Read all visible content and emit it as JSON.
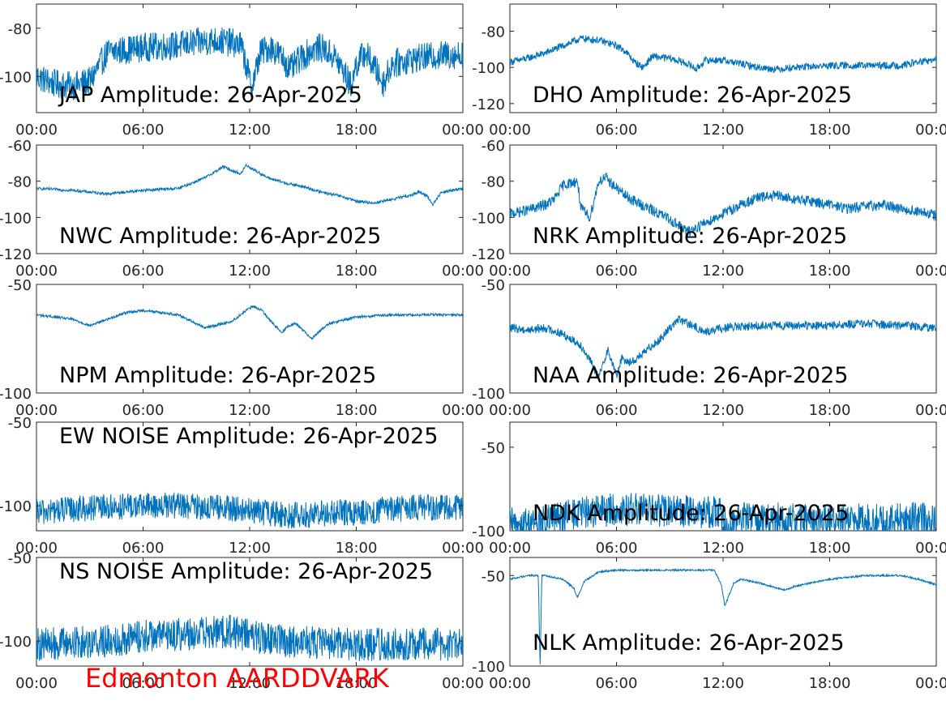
{
  "station": "Edmonton AARDDVARK",
  "colors": {
    "trace": "#0072BD",
    "station_label": "#ff0000",
    "axis": "#262626"
  },
  "chart_data": [
    {
      "type": "line",
      "title": "JAP Amplitude: 26-Apr-2025",
      "xlim": [
        0,
        24
      ],
      "xticks": [
        0,
        6,
        12,
        18,
        24
      ],
      "xtick_labels": [
        "00:00",
        "06:00",
        "12:00",
        "18:00",
        "00:00"
      ],
      "ylim": [
        -115,
        -70
      ],
      "yticks": [
        -100,
        -80
      ],
      "ytick_labels": [
        "-100",
        "-80"
      ],
      "noise": 6,
      "series": [
        {
          "x": [
            0,
            1,
            2,
            3,
            4,
            5,
            6,
            8,
            9,
            10,
            11,
            11.5,
            11.8,
            12.1,
            12.6,
            13.2,
            13.8,
            14.3,
            14.8,
            15.5,
            16,
            16.8,
            17.3,
            17.7,
            18,
            18.5,
            19.1,
            19.5,
            20,
            21,
            22,
            23,
            24
          ],
          "y": [
            -100,
            -103,
            -104,
            -102,
            -90,
            -89,
            -88,
            -87,
            -86,
            -85,
            -86,
            -87,
            -95,
            -105,
            -90,
            -88,
            -92,
            -97,
            -93,
            -89,
            -88,
            -92,
            -98,
            -104,
            -95,
            -90,
            -97,
            -103,
            -95,
            -93,
            -92,
            -91,
            -91
          ]
        }
      ]
    },
    {
      "type": "line",
      "title": "DHO Amplitude: 26-Apr-2025",
      "xlim": [
        0,
        24
      ],
      "xticks": [
        0,
        6,
        12,
        18,
        24
      ],
      "xtick_labels": [
        "00:00",
        "06:00",
        "12:00",
        "18:00",
        "00:00"
      ],
      "ylim": [
        -125,
        -65
      ],
      "yticks": [
        -120,
        -100,
        -80
      ],
      "ytick_labels": [
        "-120",
        "-100",
        "-80"
      ],
      "noise": 2,
      "series": [
        {
          "x": [
            0,
            1,
            2,
            3,
            3.5,
            4,
            5,
            6,
            6.5,
            7,
            7.5,
            8,
            9,
            10,
            10.5,
            11,
            12,
            13,
            14,
            15,
            16,
            18,
            20,
            22,
            23,
            24
          ],
          "y": [
            -97,
            -95,
            -92,
            -88,
            -86,
            -84,
            -85,
            -88,
            -91,
            -97,
            -100,
            -94,
            -95,
            -98,
            -101,
            -96,
            -96,
            -98,
            -100,
            -101,
            -100,
            -99,
            -99,
            -99,
            -97,
            -96
          ]
        }
      ]
    },
    {
      "type": "line",
      "title": "NWC Amplitude: 26-Apr-2025",
      "xlim": [
        0,
        24
      ],
      "xticks": [
        0,
        6,
        12,
        18,
        24
      ],
      "xtick_labels": [
        "00:00",
        "06:00",
        "12:00",
        "18:00",
        "00:00"
      ],
      "ylim": [
        -120,
        -60
      ],
      "yticks": [
        -120,
        -100,
        -80,
        -60
      ],
      "ytick_labels": [
        "-120",
        "-100",
        "-80",
        "-60"
      ],
      "noise": 0.8,
      "series": [
        {
          "x": [
            0,
            2,
            4,
            6,
            8,
            9.5,
            10.5,
            11.5,
            11.8,
            12.3,
            13,
            14,
            15,
            16,
            17,
            18,
            19,
            20,
            21,
            21.5,
            22,
            22.3,
            22.8,
            24
          ],
          "y": [
            -84,
            -85,
            -87,
            -85,
            -84,
            -78,
            -72,
            -76,
            -71,
            -74,
            -78,
            -81,
            -83,
            -86,
            -88,
            -91,
            -92,
            -90,
            -88,
            -86,
            -88,
            -93,
            -86,
            -84
          ]
        }
      ]
    },
    {
      "type": "line",
      "title": "NRK Amplitude: 26-Apr-2025",
      "xlim": [
        0,
        24
      ],
      "xticks": [
        0,
        6,
        12,
        18,
        24
      ],
      "xtick_labels": [
        "00:00",
        "06:00",
        "12:00",
        "18:00",
        "00:00"
      ],
      "ylim": [
        -120,
        -60
      ],
      "yticks": [
        -120,
        -100,
        -80,
        -60
      ],
      "ytick_labels": [
        "-120",
        "-100",
        "-80",
        "-60"
      ],
      "noise": 3,
      "series": [
        {
          "x": [
            0,
            1,
            2,
            2.5,
            3,
            3.8,
            4,
            4.5,
            5,
            5.4,
            5.8,
            6.5,
            7,
            8,
            9,
            10,
            11,
            12,
            13,
            14,
            15,
            16,
            17,
            18,
            19,
            20,
            21,
            22,
            23,
            24
          ],
          "y": [
            -98,
            -96,
            -93,
            -90,
            -82,
            -80,
            -95,
            -100,
            -80,
            -78,
            -82,
            -88,
            -91,
            -96,
            -101,
            -108,
            -103,
            -98,
            -93,
            -89,
            -88,
            -90,
            -91,
            -93,
            -95,
            -94,
            -93,
            -95,
            -97,
            -99
          ]
        }
      ]
    },
    {
      "type": "line",
      "title": "NPM Amplitude: 26-Apr-2025",
      "xlim": [
        0,
        24
      ],
      "xticks": [
        0,
        6,
        12,
        18,
        24
      ],
      "xtick_labels": [
        "00:00",
        "06:00",
        "12:00",
        "18:00",
        "00:00"
      ],
      "ylim": [
        -100,
        -50
      ],
      "yticks": [
        -100,
        -50
      ],
      "ytick_labels": [
        "-100",
        "-50"
      ],
      "noise": 0.6,
      "series": [
        {
          "x": [
            0,
            2,
            3,
            4,
            5,
            6,
            8,
            9,
            9.5,
            10,
            11,
            11.8,
            12.2,
            12.7,
            13.3,
            13.8,
            14.2,
            14.6,
            15,
            15.5,
            16,
            16.5,
            18,
            20,
            22,
            24
          ],
          "y": [
            -64,
            -66,
            -69,
            -66,
            -63,
            -62,
            -64,
            -68,
            -70,
            -69,
            -67,
            -62,
            -60,
            -62,
            -68,
            -72,
            -69,
            -68,
            -71,
            -75,
            -71,
            -68,
            -65,
            -64,
            -64,
            -64
          ]
        }
      ]
    },
    {
      "type": "line",
      "title": "NAA Amplitude: 26-Apr-2025",
      "xlim": [
        0,
        24
      ],
      "xticks": [
        0,
        6,
        12,
        18,
        24
      ],
      "xtick_labels": [
        "00:00",
        "06:00",
        "12:00",
        "18:00",
        "00:00"
      ],
      "ylim": [
        -100,
        -50
      ],
      "yticks": [
        -100,
        -50
      ],
      "ytick_labels": [
        "-100",
        "-50"
      ],
      "noise": 2,
      "series": [
        {
          "x": [
            0,
            1,
            2,
            3,
            4,
            4.5,
            5,
            5.5,
            6,
            6.3,
            6.8,
            7.5,
            8,
            8.5,
            9,
            9.5,
            10,
            11,
            12,
            14,
            16,
            18,
            20,
            22,
            24
          ],
          "y": [
            -70,
            -71,
            -70,
            -73,
            -78,
            -85,
            -93,
            -80,
            -92,
            -84,
            -86,
            -82,
            -78,
            -75,
            -70,
            -66,
            -68,
            -72,
            -70,
            -69,
            -69,
            -69,
            -68,
            -69,
            -70
          ]
        }
      ]
    },
    {
      "type": "line",
      "title": "EW NOISE Amplitude: 26-Apr-2025",
      "xlim": [
        0,
        24
      ],
      "xticks": [
        0,
        6,
        12,
        18,
        24
      ],
      "xtick_labels": [
        "00:00",
        "06:00",
        "12:00",
        "18:00",
        "00:00"
      ],
      "ylim": [
        -115,
        -50
      ],
      "yticks": [
        -100,
        -50
      ],
      "ytick_labels": [
        "-100",
        "-50"
      ],
      "noise": 8,
      "series": [
        {
          "x": [
            0,
            2,
            4,
            6,
            8,
            10,
            12,
            14,
            16,
            18,
            20,
            22,
            24
          ],
          "y": [
            -104,
            -102,
            -101,
            -100,
            -100,
            -101,
            -103,
            -106,
            -105,
            -104,
            -102,
            -101,
            -101
          ]
        }
      ]
    },
    {
      "type": "line",
      "title": "NDK Amplitude: 26-Apr-2025",
      "xlim": [
        0,
        24
      ],
      "xticks": [
        0,
        6,
        12,
        18,
        24
      ],
      "xtick_labels": [
        "00:00",
        "06:00",
        "12:00",
        "18:00",
        "00:00"
      ],
      "ylim": [
        -100,
        -35
      ],
      "yticks": [
        -100,
        -50
      ],
      "ytick_labels": [
        "-100",
        "-50"
      ],
      "noise": 10,
      "series": [
        {
          "x": [
            0,
            2,
            3,
            5,
            7,
            9,
            11.8,
            12,
            13,
            15,
            17,
            19,
            21,
            23,
            24
          ],
          "y": [
            -96,
            -95,
            -91,
            -88,
            -87,
            -88,
            -89,
            -96,
            -92,
            -93,
            -94,
            -94,
            -93,
            -92,
            -95
          ]
        }
      ]
    },
    {
      "type": "line",
      "title": "NS NOISE Amplitude: 26-Apr-2025",
      "xlim": [
        0,
        24
      ],
      "xticks": [
        0,
        6,
        12,
        18,
        24
      ],
      "xtick_labels": [
        "00:00",
        "06:00",
        "12:00",
        "18:00",
        "00:00"
      ],
      "ylim": [
        -115,
        -50
      ],
      "yticks": [
        -100,
        -50
      ],
      "ytick_labels": [
        "-100",
        "-50"
      ],
      "noise": 10,
      "series": [
        {
          "x": [
            0,
            2,
            4,
            6,
            8,
            10,
            11,
            12,
            14,
            16,
            18,
            20,
            22,
            24
          ],
          "y": [
            -102,
            -101,
            -100,
            -97,
            -96,
            -95,
            -94,
            -97,
            -100,
            -101,
            -102,
            -102,
            -102,
            -102
          ]
        }
      ]
    },
    {
      "type": "line",
      "title": "NLK Amplitude: 26-Apr-2025",
      "xlim": [
        0,
        24
      ],
      "xticks": [
        0,
        6,
        12,
        18,
        24
      ],
      "xtick_labels": [
        "00:00",
        "06:00",
        "12:00",
        "18:00",
        "00:00"
      ],
      "ylim": [
        -100,
        -40
      ],
      "yticks": [
        -100,
        -50
      ],
      "ytick_labels": [
        "-100",
        "-50"
      ],
      "noise": 0.5,
      "series": [
        {
          "x": [
            0,
            1,
            1.6,
            1.7,
            1.8,
            2,
            3,
            3.6,
            3.8,
            4.2,
            5,
            6,
            8,
            10,
            11.5,
            11.9,
            12.1,
            12.6,
            13,
            14,
            15,
            15.5,
            16,
            17,
            18,
            20,
            22,
            23,
            24
          ],
          "y": [
            -52,
            -50,
            -50,
            -100,
            -50,
            -50,
            -52,
            -57,
            -62,
            -53,
            -48,
            -47,
            -47,
            -47,
            -47,
            -55,
            -67,
            -54,
            -52,
            -54,
            -57,
            -58,
            -56,
            -54,
            -52,
            -50,
            -50,
            -52,
            -55
          ]
        }
      ]
    }
  ]
}
